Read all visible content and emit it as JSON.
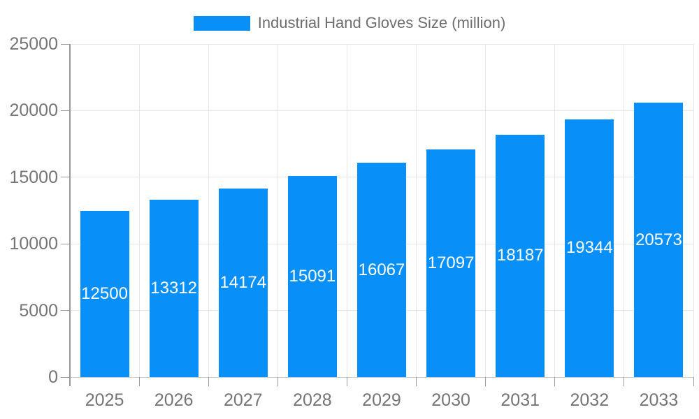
{
  "chart_data": {
    "type": "bar",
    "title": "Industrial Hand Gloves Size (million)",
    "legend": {
      "position": "top",
      "label": "Industrial Hand Gloves Size (million)"
    },
    "categories": [
      "2025",
      "2026",
      "2027",
      "2028",
      "2029",
      "2030",
      "2031",
      "2032",
      "2033"
    ],
    "values": [
      12500,
      13312,
      14174,
      15091,
      16067,
      17097,
      18187,
      19344,
      20573
    ],
    "value_labels": [
      "12500",
      "13312",
      "14174",
      "15091",
      "16067",
      "17097",
      "18187",
      "19344",
      "20573"
    ],
    "xlabel": "",
    "ylabel": "",
    "ylim": [
      0,
      25000
    ],
    "yticks": [
      0,
      5000,
      10000,
      15000,
      20000,
      25000
    ],
    "ytick_labels": [
      "0",
      "5000",
      "10000",
      "15000",
      "20000",
      "25000"
    ],
    "grid": true,
    "colors": {
      "bar": "#0990f8",
      "grid": "#e6e6e6",
      "baseline": "#cccccc",
      "axis": "#999999",
      "tick": "#999999",
      "axis_text": "#757575",
      "legend_text": "#6e6e6e",
      "value_text": "#ffffff",
      "background": "#ffffff"
    }
  }
}
